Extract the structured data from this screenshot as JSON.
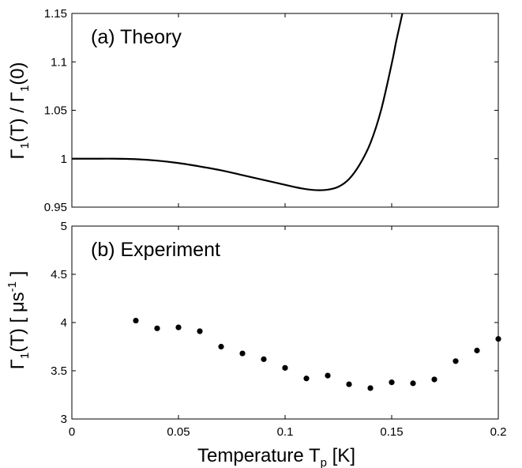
{
  "chart_data": [
    {
      "type": "line",
      "panel_label": "(a) Theory",
      "ylabel": "Γ1(T) / Γ1(0)",
      "ylabel_parts": {
        "main": "Γ",
        "sub1": "1",
        "mid": "(T) / Γ",
        "sub2": "1",
        "end": "(0)"
      },
      "xlim": [
        0,
        0.2
      ],
      "ylim": [
        0.95,
        1.15
      ],
      "yticks": [
        "0.95",
        "1",
        "1.05",
        "1.1",
        "1.15"
      ],
      "grid": false,
      "series": [
        {
          "x": [
            0,
            0.01,
            0.02,
            0.03,
            0.04,
            0.05,
            0.06,
            0.07,
            0.08,
            0.09,
            0.1,
            0.105,
            0.11,
            0.115,
            0.12,
            0.125,
            0.13,
            0.135,
            0.14,
            0.145,
            0.15,
            0.152,
            0.154,
            0.155
          ],
          "y": [
            1.0,
            1.0,
            1.0,
            0.9995,
            0.998,
            0.9955,
            0.992,
            0.988,
            0.983,
            0.978,
            0.973,
            0.9705,
            0.9685,
            0.9675,
            0.968,
            0.971,
            0.979,
            0.994,
            1.016,
            1.05,
            1.098,
            1.12,
            1.14,
            1.15
          ]
        }
      ]
    },
    {
      "type": "scatter",
      "panel_label": "(b) Experiment",
      "ylabel": "Γ1(T) [ μs-1 ]",
      "ylabel_parts": {
        "main": "Γ",
        "sub1": "1",
        "mid": "(T) [ μs",
        "sup": "-1",
        "end": " ]"
      },
      "xlabel": "Temperature Tp [K]",
      "xlabel_parts": {
        "main": "Temperature T",
        "sub": "p",
        "end": " [K]"
      },
      "xlim": [
        0,
        0.2
      ],
      "ylim": [
        3,
        5
      ],
      "xticks": [
        "0",
        "0.05",
        "0.1",
        "0.15",
        "0.2"
      ],
      "yticks": [
        "3",
        "3.5",
        "4",
        "4.5",
        "5"
      ],
      "grid": false,
      "series": [
        {
          "x": [
            0.03,
            0.04,
            0.05,
            0.06,
            0.07,
            0.08,
            0.09,
            0.1,
            0.11,
            0.12,
            0.13,
            0.14,
            0.15,
            0.16,
            0.17,
            0.18,
            0.19,
            0.2
          ],
          "y": [
            4.02,
            3.94,
            3.95,
            3.91,
            3.75,
            3.68,
            3.62,
            3.53,
            3.42,
            3.45,
            3.36,
            3.32,
            3.38,
            3.37,
            3.41,
            3.6,
            3.71,
            3.83
          ]
        }
      ]
    }
  ]
}
